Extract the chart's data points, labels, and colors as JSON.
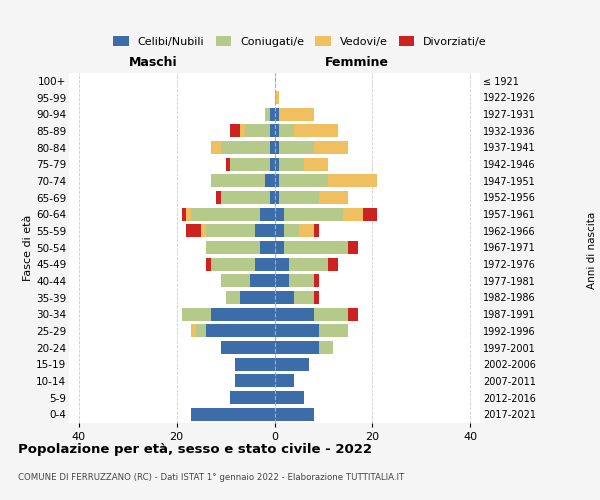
{
  "age_groups": [
    "0-4",
    "5-9",
    "10-14",
    "15-19",
    "20-24",
    "25-29",
    "30-34",
    "35-39",
    "40-44",
    "45-49",
    "50-54",
    "55-59",
    "60-64",
    "65-69",
    "70-74",
    "75-79",
    "80-84",
    "85-89",
    "90-94",
    "95-99",
    "100+"
  ],
  "birth_years": [
    "2017-2021",
    "2012-2016",
    "2007-2011",
    "2002-2006",
    "1997-2001",
    "1992-1996",
    "1987-1991",
    "1982-1986",
    "1977-1981",
    "1972-1976",
    "1967-1971",
    "1962-1966",
    "1957-1961",
    "1952-1956",
    "1947-1951",
    "1942-1946",
    "1937-1941",
    "1932-1936",
    "1927-1931",
    "1922-1926",
    "≤ 1921"
  ],
  "male": {
    "celibi": [
      17,
      9,
      8,
      8,
      11,
      14,
      13,
      7,
      5,
      4,
      3,
      4,
      3,
      1,
      2,
      1,
      1,
      1,
      1,
      0,
      0
    ],
    "coniugati": [
      0,
      0,
      0,
      0,
      0,
      2,
      6,
      3,
      6,
      9,
      11,
      10,
      14,
      10,
      11,
      8,
      10,
      5,
      1,
      0,
      0
    ],
    "vedovi": [
      0,
      0,
      0,
      0,
      0,
      1,
      0,
      0,
      0,
      0,
      0,
      1,
      1,
      0,
      0,
      0,
      2,
      1,
      0,
      0,
      0
    ],
    "divorziati": [
      0,
      0,
      0,
      0,
      0,
      0,
      0,
      0,
      0,
      1,
      0,
      3,
      1,
      1,
      0,
      1,
      0,
      2,
      0,
      0,
      0
    ]
  },
  "female": {
    "nubili": [
      8,
      6,
      4,
      7,
      9,
      9,
      8,
      4,
      3,
      3,
      2,
      2,
      2,
      1,
      1,
      1,
      1,
      1,
      1,
      0,
      0
    ],
    "coniugate": [
      0,
      0,
      0,
      0,
      3,
      6,
      7,
      4,
      5,
      8,
      13,
      3,
      12,
      8,
      10,
      5,
      7,
      3,
      0,
      0,
      0
    ],
    "vedove": [
      0,
      0,
      0,
      0,
      0,
      0,
      0,
      0,
      0,
      0,
      0,
      3,
      4,
      6,
      10,
      5,
      7,
      9,
      7,
      1,
      0
    ],
    "divorziate": [
      0,
      0,
      0,
      0,
      0,
      0,
      2,
      1,
      1,
      2,
      2,
      1,
      3,
      0,
      0,
      0,
      0,
      0,
      0,
      0,
      0
    ]
  },
  "colors": {
    "celibi": "#3d6da8",
    "coniugati": "#b5c98a",
    "vedovi": "#f0c060",
    "divorziati": "#cc2222"
  },
  "title": "Popolazione per età, sesso e stato civile - 2022",
  "subtitle": "COMUNE DI FERRUZZANO (RC) - Dati ISTAT 1° gennaio 2022 - Elaborazione TUTTITALIA.IT",
  "xlabel_left": "Maschi",
  "xlabel_right": "Femmine",
  "ylabel": "Fasce di età",
  "ylabel_right": "Anni di nascita",
  "xlim": 42,
  "bg_color": "#f5f5f5",
  "plot_bg": "#ffffff"
}
